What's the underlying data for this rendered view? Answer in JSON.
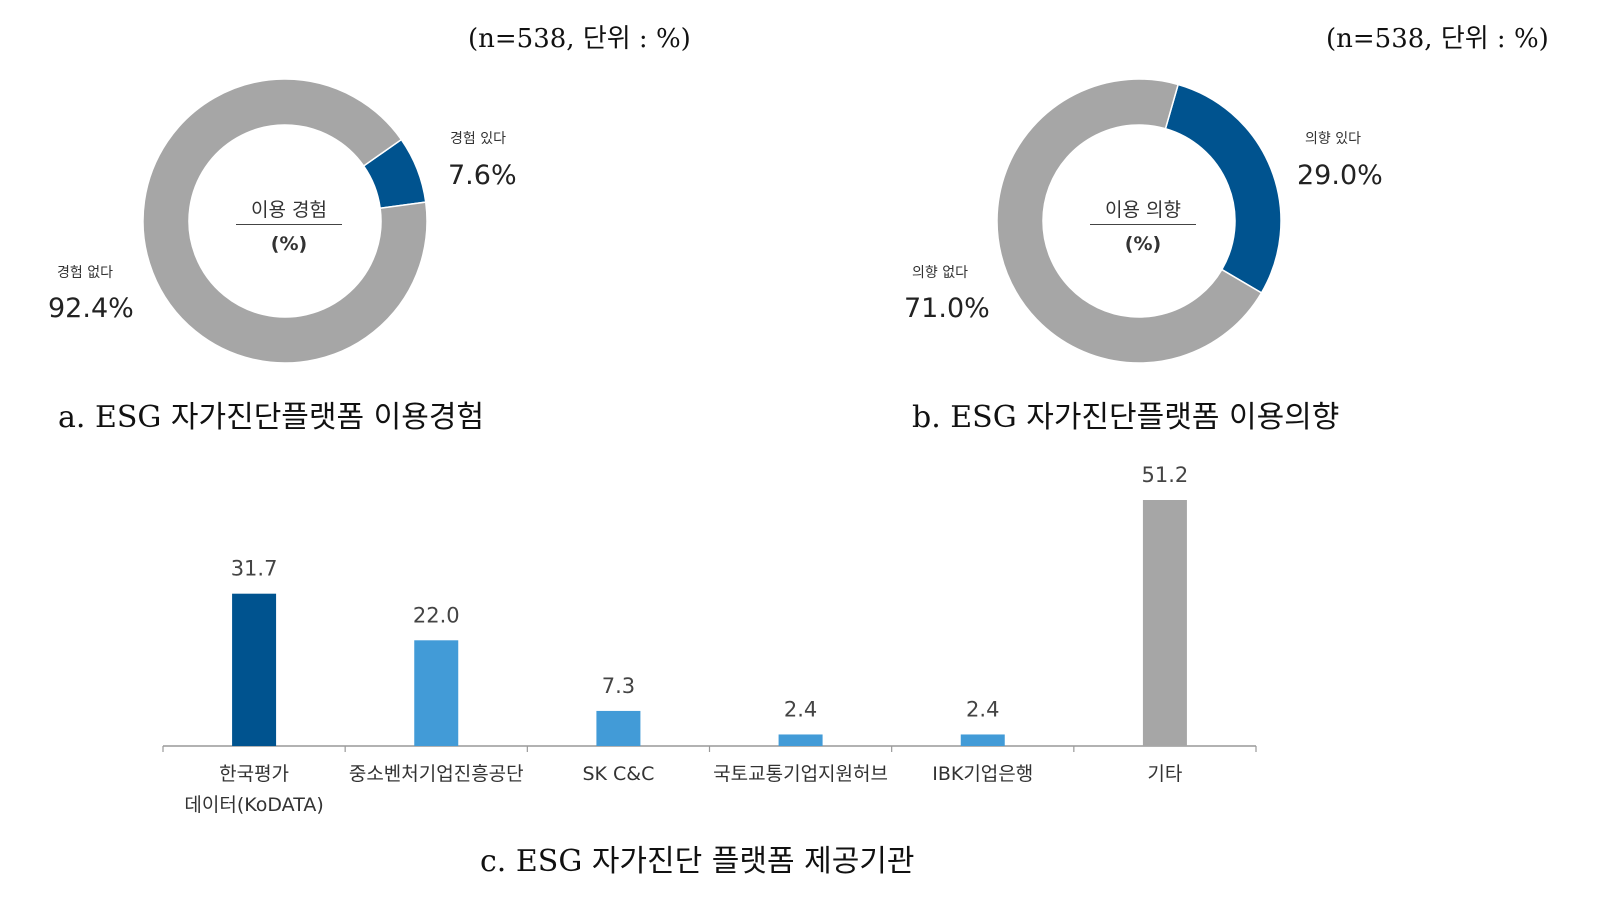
{
  "chart_data": [
    {
      "type": "pie",
      "subtype": "donut",
      "unit_note": "(n=538, 단위 : %)",
      "center_title": "이용 경험",
      "center_unit": "(%)",
      "caption": "a. ESG 자가진단플랫폼 이용경험",
      "slices": [
        {
          "name": "경험 있다",
          "value": 7.6,
          "label": "7.6%",
          "color": "#00538f"
        },
        {
          "name": "경험 없다",
          "value": 92.4,
          "label": "92.4%",
          "color": "#a6a6a6"
        }
      ]
    },
    {
      "type": "pie",
      "subtype": "donut",
      "unit_note": "(n=538, 단위 : %)",
      "center_title": "이용 의향",
      "center_unit": "(%)",
      "caption": "b. ESG 자가진단플랫폼 이용의향",
      "slices": [
        {
          "name": "의향 있다",
          "value": 29.0,
          "label": "29.0%",
          "color": "#00538f"
        },
        {
          "name": "의향 없다",
          "value": 71.0,
          "label": "71.0%",
          "color": "#a6a6a6"
        }
      ]
    },
    {
      "type": "bar",
      "caption": "c. ESG 자가진단 플랫폼 제공기관",
      "categories": [
        "한국평가\n데이터(KoDATA)",
        "중소벤처기업진흥공단",
        "SK C&C",
        "국토교통기업지원허브",
        "IBK기업은행",
        "기타"
      ],
      "values": [
        31.7,
        22.0,
        7.3,
        2.4,
        2.4,
        51.2
      ],
      "value_labels": [
        "31.7",
        "22.0",
        "7.3",
        "2.4",
        "2.4",
        "51.2"
      ],
      "colors": [
        "#00538f",
        "#429bd7",
        "#429bd7",
        "#429bd7",
        "#429bd7",
        "#a6a6a6"
      ],
      "ylim": [
        0,
        51.2
      ],
      "grid": false
    }
  ]
}
